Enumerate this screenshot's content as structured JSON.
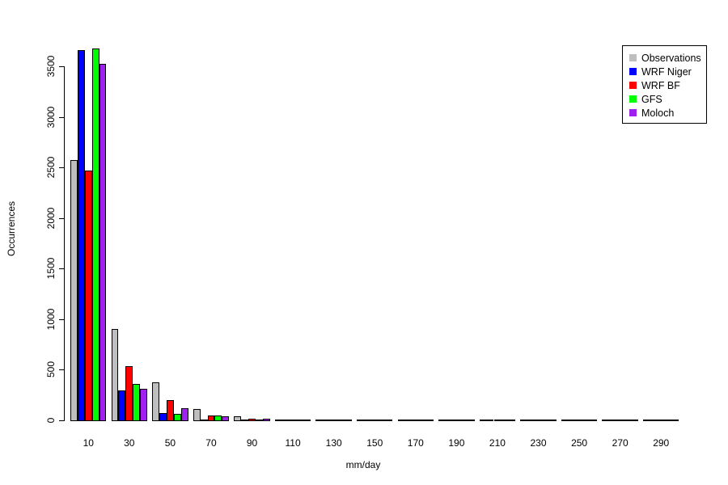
{
  "chart_data": {
    "type": "bar",
    "title": "",
    "xlabel": "mm/day",
    "ylabel": "Occurrences",
    "categories": [
      "10",
      "30",
      "50",
      "70",
      "90",
      "110",
      "130",
      "150",
      "170",
      "190",
      "210",
      "230",
      "250",
      "270",
      "290"
    ],
    "series": [
      {
        "name": "Observations",
        "color": "#BEBEBE",
        "values": [
          2580,
          910,
          380,
          118,
          45,
          13,
          5,
          2,
          1,
          1,
          1,
          1,
          0,
          0,
          0
        ]
      },
      {
        "name": "WRF Niger",
        "color": "#0000FF",
        "values": [
          3670,
          300,
          80,
          12,
          3,
          2,
          1,
          0,
          0,
          0,
          0,
          0,
          0,
          0,
          0
        ]
      },
      {
        "name": "WRF BF",
        "color": "#FF0000",
        "values": [
          2480,
          545,
          205,
          55,
          25,
          8,
          5,
          1,
          1,
          0,
          0,
          0,
          0,
          0,
          0
        ]
      },
      {
        "name": "GFS",
        "color": "#00FF00",
        "values": [
          3680,
          370,
          75,
          55,
          10,
          2,
          2,
          0,
          0,
          0,
          0,
          0,
          0,
          0,
          0
        ]
      },
      {
        "name": "Moloch",
        "color": "#A020F0",
        "values": [
          3530,
          320,
          125,
          50,
          25,
          15,
          8,
          1,
          1,
          1,
          0,
          0,
          0,
          0,
          0
        ]
      }
    ],
    "y_ticks": [
      0,
      500,
      1000,
      1500,
      2000,
      2500,
      3000,
      3500
    ],
    "ylim": [
      0,
      3700
    ],
    "bar_border_color": "#000000",
    "grid": false,
    "legend_position": "top-right",
    "legend_entries": [
      "Observations",
      "WRF Niger",
      "WRF BF",
      "GFS",
      "Moloch"
    ]
  }
}
